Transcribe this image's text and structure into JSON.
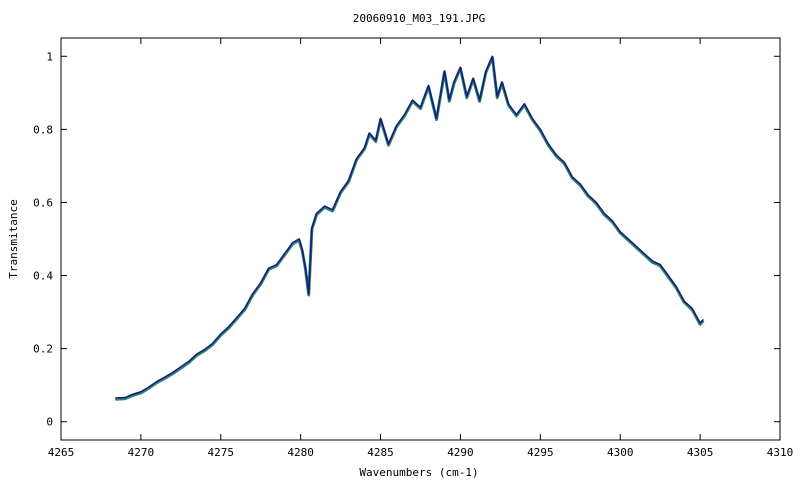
{
  "chart_data": {
    "type": "line",
    "title": "20060910_M03_191.JPG",
    "xlabel": "Wavenumbers (cm-1)",
    "ylabel": "Transmitance",
    "xlim": [
      4265,
      4310
    ],
    "ylim": [
      -0.05,
      1.05
    ],
    "xticks": [
      4265,
      4270,
      4275,
      4280,
      4285,
      4290,
      4295,
      4300,
      4305,
      4310
    ],
    "yticks": [
      0,
      0.2,
      0.4,
      0.6,
      0.8,
      1
    ],
    "ytick_labels": [
      "0",
      "0.2",
      "0.4",
      "0.6",
      "0.8",
      "1"
    ],
    "grid": false,
    "colors": [
      "#2b8a6e",
      "#1a1a80"
    ],
    "series": [
      {
        "x": [
          4268.4,
          4269.0,
          4269.5,
          4270.0,
          4270.5,
          4271.0,
          4271.5,
          4272.0,
          4272.5,
          4273.0,
          4273.5,
          4274.0,
          4274.5,
          4275.0,
          4275.5,
          4276.0,
          4276.5,
          4277.0,
          4277.5,
          4278.0,
          4278.5,
          4279.0,
          4279.5,
          4279.9,
          4280.1,
          4280.3,
          4280.5,
          4280.7,
          4281.0,
          4281.5,
          4282.0,
          4282.5,
          4283.0,
          4283.5,
          4284.0,
          4284.3,
          4284.7,
          4285.0,
          4285.5,
          4286.0,
          4286.5,
          4287.0,
          4287.5,
          4288.0,
          4288.5,
          4289.0,
          4289.3,
          4289.6,
          4290.0,
          4290.4,
          4290.8,
          4291.2,
          4291.6,
          4292.0,
          4292.3,
          4292.6,
          4293.0,
          4293.5,
          4294.0,
          4294.5,
          4295.0,
          4295.5,
          4296.0,
          4296.5,
          4297.0,
          4297.5,
          4298.0,
          4298.5,
          4299.0,
          4299.5,
          4300.0,
          4300.5,
          4301.0,
          4301.5,
          4302.0,
          4302.5,
          4303.0,
          4303.5,
          4304.0,
          4304.5,
          4305.0,
          4305.2
        ],
        "y": [
          0.065,
          0.066,
          0.075,
          0.082,
          0.095,
          0.11,
          0.122,
          0.135,
          0.15,
          0.165,
          0.185,
          0.198,
          0.215,
          0.24,
          0.26,
          0.285,
          0.31,
          0.35,
          0.38,
          0.42,
          0.43,
          0.46,
          0.49,
          0.5,
          0.47,
          0.42,
          0.35,
          0.53,
          0.57,
          0.59,
          0.58,
          0.63,
          0.66,
          0.72,
          0.75,
          0.79,
          0.77,
          0.83,
          0.76,
          0.81,
          0.84,
          0.88,
          0.86,
          0.92,
          0.83,
          0.96,
          0.88,
          0.93,
          0.97,
          0.89,
          0.94,
          0.88,
          0.96,
          1.0,
          0.89,
          0.93,
          0.87,
          0.84,
          0.87,
          0.83,
          0.8,
          0.76,
          0.73,
          0.71,
          0.67,
          0.65,
          0.62,
          0.6,
          0.57,
          0.55,
          0.52,
          0.5,
          0.48,
          0.46,
          0.44,
          0.43,
          0.4,
          0.37,
          0.33,
          0.31,
          0.27,
          0.28
        ]
      }
    ]
  }
}
